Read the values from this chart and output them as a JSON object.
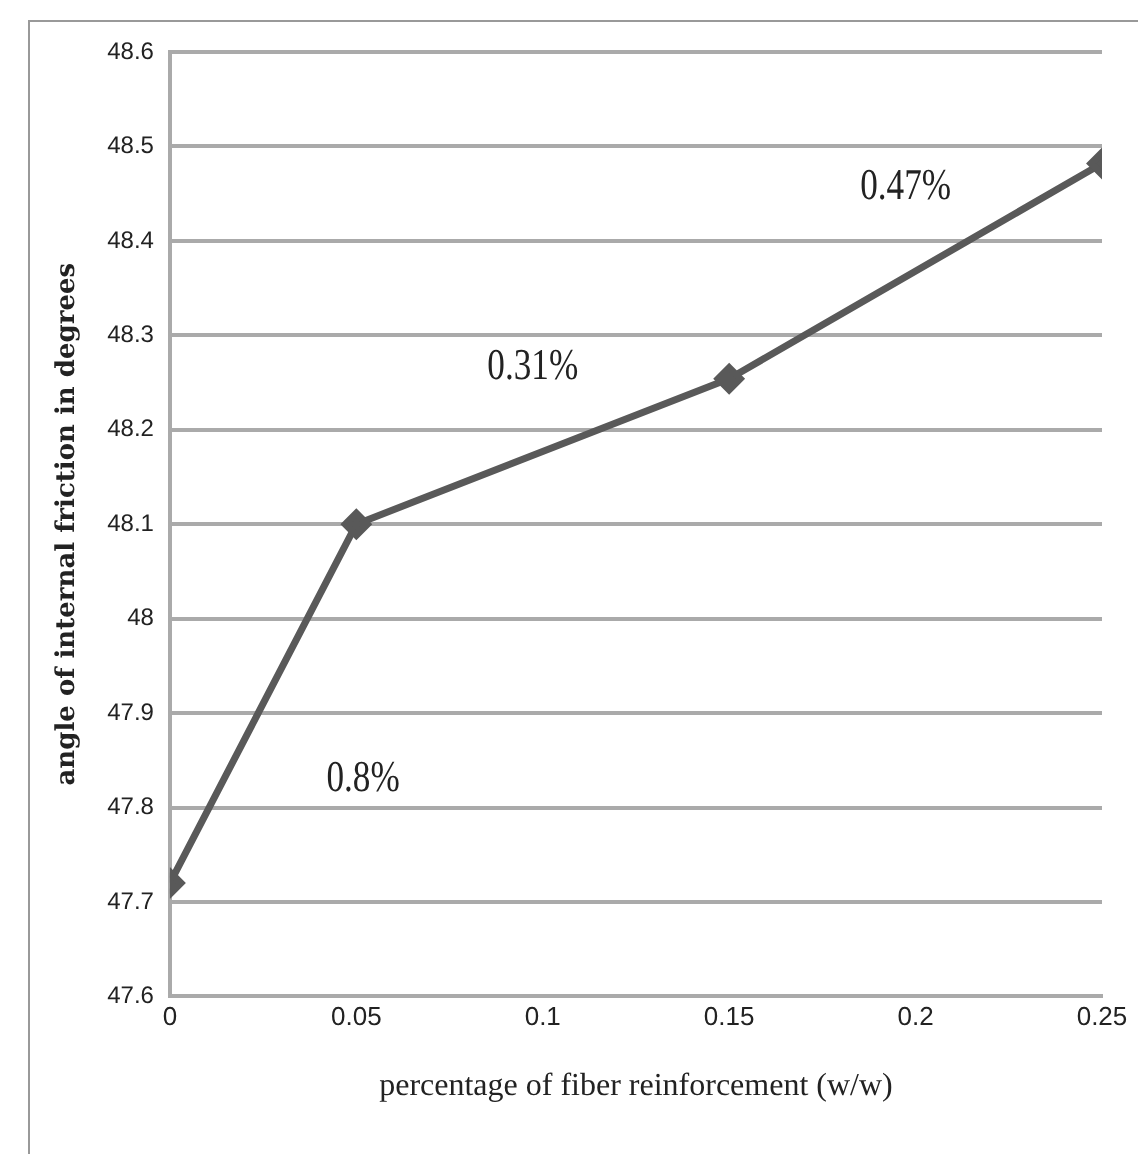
{
  "chart_data": {
    "type": "line",
    "xlabel": "percentage of fiber reinforcement (w/w)",
    "ylabel": "angle of internal friction in degrees",
    "x": [
      0,
      0.05,
      0.15,
      0.25
    ],
    "series": [
      {
        "color": "#595959",
        "values": [
          47.72,
          48.1,
          48.254,
          48.482
        ]
      }
    ],
    "xlim": [
      0,
      0.25
    ],
    "xticks": [
      0,
      0.05,
      0.1,
      0.15,
      0.2,
      0.25
    ],
    "ylim": [
      47.6,
      48.6
    ],
    "yticks": [
      47.6,
      47.7,
      47.8,
      47.9,
      48,
      48.1,
      48.2,
      48.3,
      48.4,
      48.5,
      48.6
    ],
    "grid": "y",
    "legend": false,
    "marker": "diamond",
    "line_style": "solid",
    "annotations": [
      "0.8%",
      "0.31%",
      "0.47%"
    ]
  }
}
